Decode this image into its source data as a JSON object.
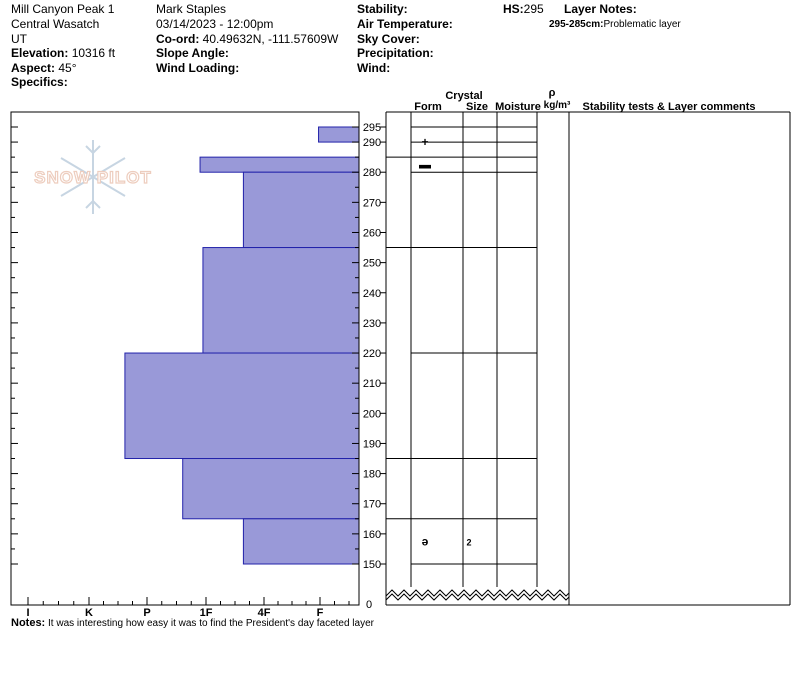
{
  "header": {
    "location": "Mill Canyon Peak 1",
    "range": "Central Wasatch",
    "state": "UT",
    "elevation_label": "Elevation:",
    "elevation_value": "10316 ft",
    "aspect_label": "Aspect:",
    "aspect_value": "45°",
    "specifics_label": "Specifics:",
    "observer": "Mark Staples",
    "datetime": "03/14/2023 - 12:00pm",
    "coord_label": "Co-ord:",
    "coord_value": "40.49632N, -111.57609W",
    "slope_label": "Slope Angle:",
    "wind_loading_label": "Wind Loading:",
    "stability_label": "Stability:",
    "air_temp_label": "Air Temperature:",
    "sky_cover_label": "Sky Cover:",
    "precip_label": "Precipitation:",
    "wind_label": "Wind:",
    "hs_label": "HS:",
    "hs_value": "295",
    "layer_notes_label": "Layer Notes:",
    "layer_note_range": "295-285cm:",
    "layer_note_text": "Problematic layer"
  },
  "watermark": {
    "text": "SNOW PILOT",
    "icon": "snowflake-icon"
  },
  "columns": {
    "crystal": "Crystal",
    "form": "Form",
    "size": "Size",
    "moisture": "Moisture",
    "rho": "ρ",
    "density_unit": "kg/m³",
    "comments": "Stability tests & Layer comments"
  },
  "notes": {
    "label": "Notes:",
    "text": "It was interesting how easy it was to find the President's day faceted layer"
  },
  "chart_data": {
    "type": "bar",
    "orientation": "horizontal",
    "x_axis_ticks": [
      "I",
      "K",
      "P",
      "1F",
      "4F",
      "F"
    ],
    "y_axis_ticks": [
      295,
      290,
      280,
      270,
      260,
      250,
      240,
      230,
      220,
      210,
      200,
      190,
      180,
      170,
      160,
      150
    ],
    "y_axis_zero_label": "0",
    "ylim": [
      150,
      295
    ],
    "hardness_scale_note": "hardness index: F=1, 4F=2, 1F=3, P=4, K=5, I=6",
    "colors": {
      "fill": "#9999d8",
      "stroke": "#2222aa"
    },
    "layers": [
      {
        "top": 295,
        "bottom": 290,
        "hardness": 0.7
      },
      {
        "top": 290,
        "bottom": 285,
        "hardness": 0
      },
      {
        "top": 285,
        "bottom": 280,
        "hardness": 2.75
      },
      {
        "top": 280,
        "bottom": 255,
        "hardness": 2.0
      },
      {
        "top": 255,
        "bottom": 220,
        "hardness": 2.7
      },
      {
        "top": 220,
        "bottom": 185,
        "hardness": 4.05
      },
      {
        "top": 185,
        "bottom": 165,
        "hardness": 3.05
      },
      {
        "top": 165,
        "bottom": 150,
        "hardness": 2.0
      }
    ],
    "layer_boundaries": [
      295,
      290,
      285,
      280,
      255,
      220,
      185,
      165,
      150
    ],
    "crystal_symbols": [
      {
        "height": 290,
        "symbol": "+"
      },
      {
        "height": 282.5,
        "symbol": "▬"
      },
      {
        "height": 157.5,
        "symbol": "ə"
      }
    ],
    "crystal_sizes": [
      {
        "height": 157.5,
        "size": "2"
      }
    ]
  }
}
